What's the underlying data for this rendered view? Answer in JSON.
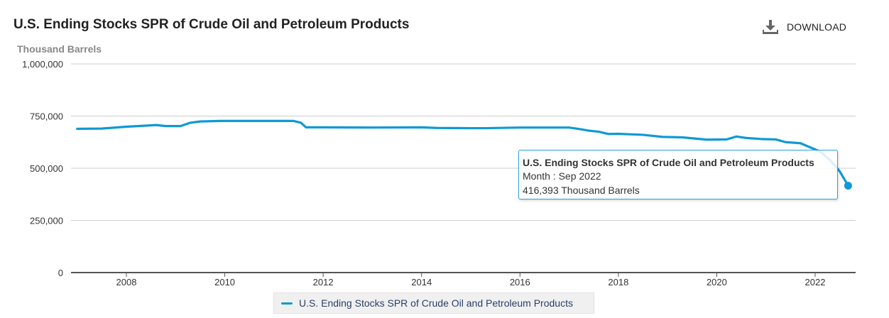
{
  "header": {
    "title": "U.S. Ending Stocks SPR of Crude Oil and Petroleum Products",
    "download_label": "DOWNLOAD",
    "download_icon": "download-icon"
  },
  "tooltip": {
    "series": "U.S. Ending Stocks SPR of Crude Oil and Petroleum Products",
    "month": "Month : Sep 2022",
    "value": "416,393 Thousand Barrels"
  },
  "legend": {
    "label": "U.S. Ending Stocks SPR of Crude Oil and Petroleum Products"
  },
  "colors": {
    "series": "#0f99d6",
    "grid": "#cccccc",
    "axis": "#555555"
  },
  "chart_data": {
    "type": "line",
    "title": "U.S. Ending Stocks SPR of Crude Oil and Petroleum Products",
    "ylabel": "Thousand Barrels",
    "xlabel": "",
    "ylim": [
      0,
      1000000
    ],
    "xlim": [
      2006.7,
      2022.9
    ],
    "y_ticks": [
      0,
      250000,
      500000,
      750000,
      1000000
    ],
    "y_tick_labels": [
      "0",
      "250,000",
      "500,000",
      "750,000",
      "1,000,000"
    ],
    "x_ticks": [
      2008,
      2010,
      2012,
      2014,
      2016,
      2018,
      2020,
      2022
    ],
    "x_tick_labels": [
      "2008",
      "2010",
      "2012",
      "2014",
      "2016",
      "2018",
      "2020",
      "2022"
    ],
    "grid": true,
    "legend": "bottom-center",
    "series": [
      {
        "name": "U.S. Ending Stocks SPR of Crude Oil and Petroleum Products",
        "x": [
          2007.0,
          2007.5,
          2008.0,
          2008.4,
          2008.6,
          2008.8,
          2009.1,
          2009.3,
          2009.5,
          2009.9,
          2010.5,
          2011.0,
          2011.4,
          2011.55,
          2011.65,
          2012.0,
          2013.0,
          2014.0,
          2014.3,
          2015.0,
          2015.3,
          2016.0,
          2017.0,
          2017.2,
          2017.4,
          2017.6,
          2017.8,
          2018.0,
          2018.5,
          2018.9,
          2019.3,
          2019.8,
          2020.2,
          2020.4,
          2020.6,
          2020.9,
          2021.2,
          2021.4,
          2021.7,
          2021.9,
          2022.1,
          2022.3,
          2022.5,
          2022.67
        ],
        "values": [
          689000,
          690000,
          699000,
          704000,
          707000,
          702000,
          702000,
          718000,
          724000,
          726500,
          726600,
          726600,
          726500,
          718000,
          696000,
          696000,
          695000,
          696000,
          693000,
          692000,
          692000,
          695000,
          695000,
          688000,
          680000,
          675000,
          664000,
          665000,
          660000,
          650000,
          648000,
          637000,
          638000,
          652000,
          645000,
          640000,
          638000,
          625000,
          620000,
          600000,
          580000,
          540000,
          485000,
          416393
        ]
      }
    ],
    "highlight": {
      "x": "Sep 2022",
      "value": 416393,
      "unit": "Thousand Barrels"
    }
  }
}
